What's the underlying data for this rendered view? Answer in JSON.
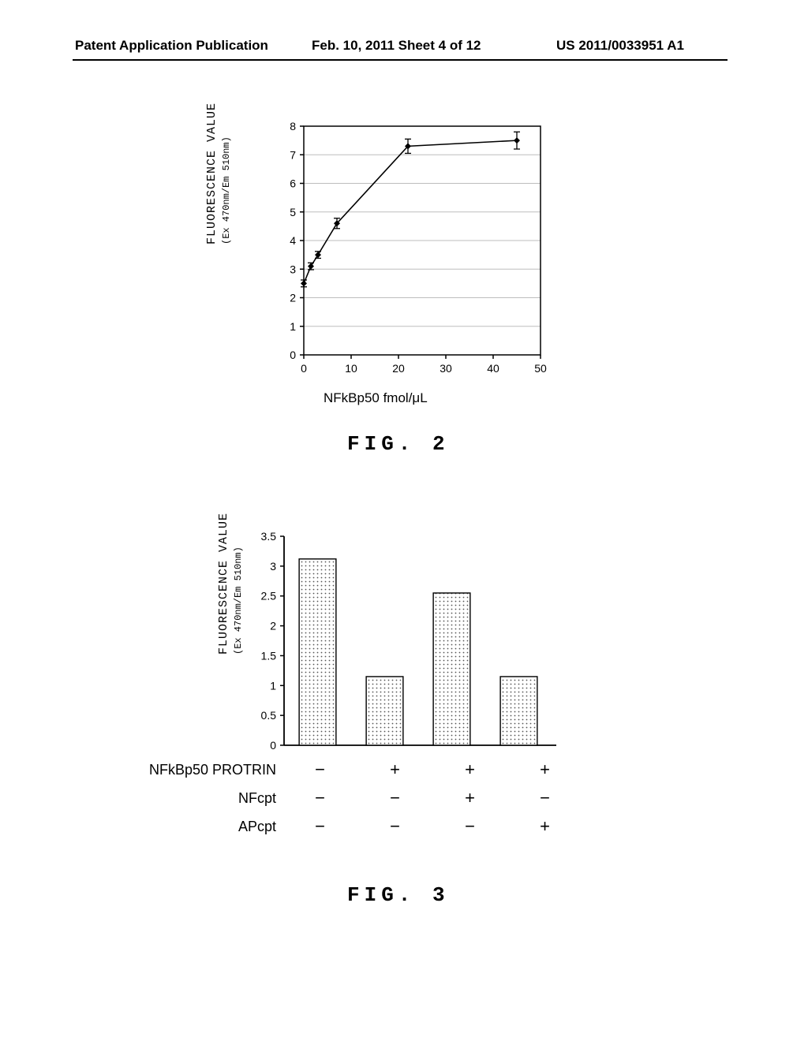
{
  "header": {
    "left": "Patent Application Publication",
    "center": "Feb. 10, 2011  Sheet 4 of 12",
    "right": "US 2011/0033951 A1"
  },
  "fig2": {
    "label": "FIG. 2",
    "type": "line",
    "ylabel": "FLUORESCENCE VALUE",
    "ylabel_sub": "(Ex 470nm/Em 510nm)",
    "xlabel": "NFkBp50  fmol/μL",
    "xlim": [
      0,
      50
    ],
    "ylim": [
      0,
      8
    ],
    "xticks": [
      0,
      10,
      20,
      30,
      40,
      50
    ],
    "yticks": [
      0,
      1,
      2,
      3,
      4,
      5,
      6,
      7,
      8
    ],
    "grid_color": "#bdbdbd",
    "axis_color": "#000000",
    "line_color": "#000000",
    "marker_color": "#000000",
    "points": [
      {
        "x": 0,
        "y": 2.5,
        "err": 0.12
      },
      {
        "x": 1.5,
        "y": 3.1,
        "err": 0.12
      },
      {
        "x": 3,
        "y": 3.5,
        "err": 0.12
      },
      {
        "x": 7,
        "y": 4.6,
        "err": 0.18
      },
      {
        "x": 22,
        "y": 7.3,
        "err": 0.25
      },
      {
        "x": 45,
        "y": 7.5,
        "err": 0.3
      }
    ]
  },
  "fig3": {
    "label": "FIG. 3",
    "type": "bar",
    "ylabel": "FLUORESCENCE VALUE",
    "ylabel_sub": "(Ex 470nm/Em 510nm)",
    "ylim": [
      0,
      3.5
    ],
    "yticks": [
      0,
      0.5,
      1,
      1.5,
      2,
      2.5,
      3,
      3.5
    ],
    "ytick_labels": [
      "0",
      "0.5",
      "1",
      "1.5",
      "2",
      "2.5",
      "3",
      "3.5"
    ],
    "axis_color": "#000000",
    "bar_fill": "#bfbfbf",
    "bar_pattern": "dots",
    "bar_border": "#000000",
    "bars": [
      {
        "value": 3.12
      },
      {
        "value": 1.15
      },
      {
        "value": 2.55
      },
      {
        "value": 1.15
      }
    ],
    "row_labels": [
      "NFkBp50 PROTRIN",
      "NFcpt",
      "APcpt"
    ],
    "rows": [
      [
        "−",
        "+",
        "+",
        "+"
      ],
      [
        "−",
        "−",
        "+",
        "−"
      ],
      [
        "−",
        "−",
        "−",
        "+"
      ]
    ]
  }
}
